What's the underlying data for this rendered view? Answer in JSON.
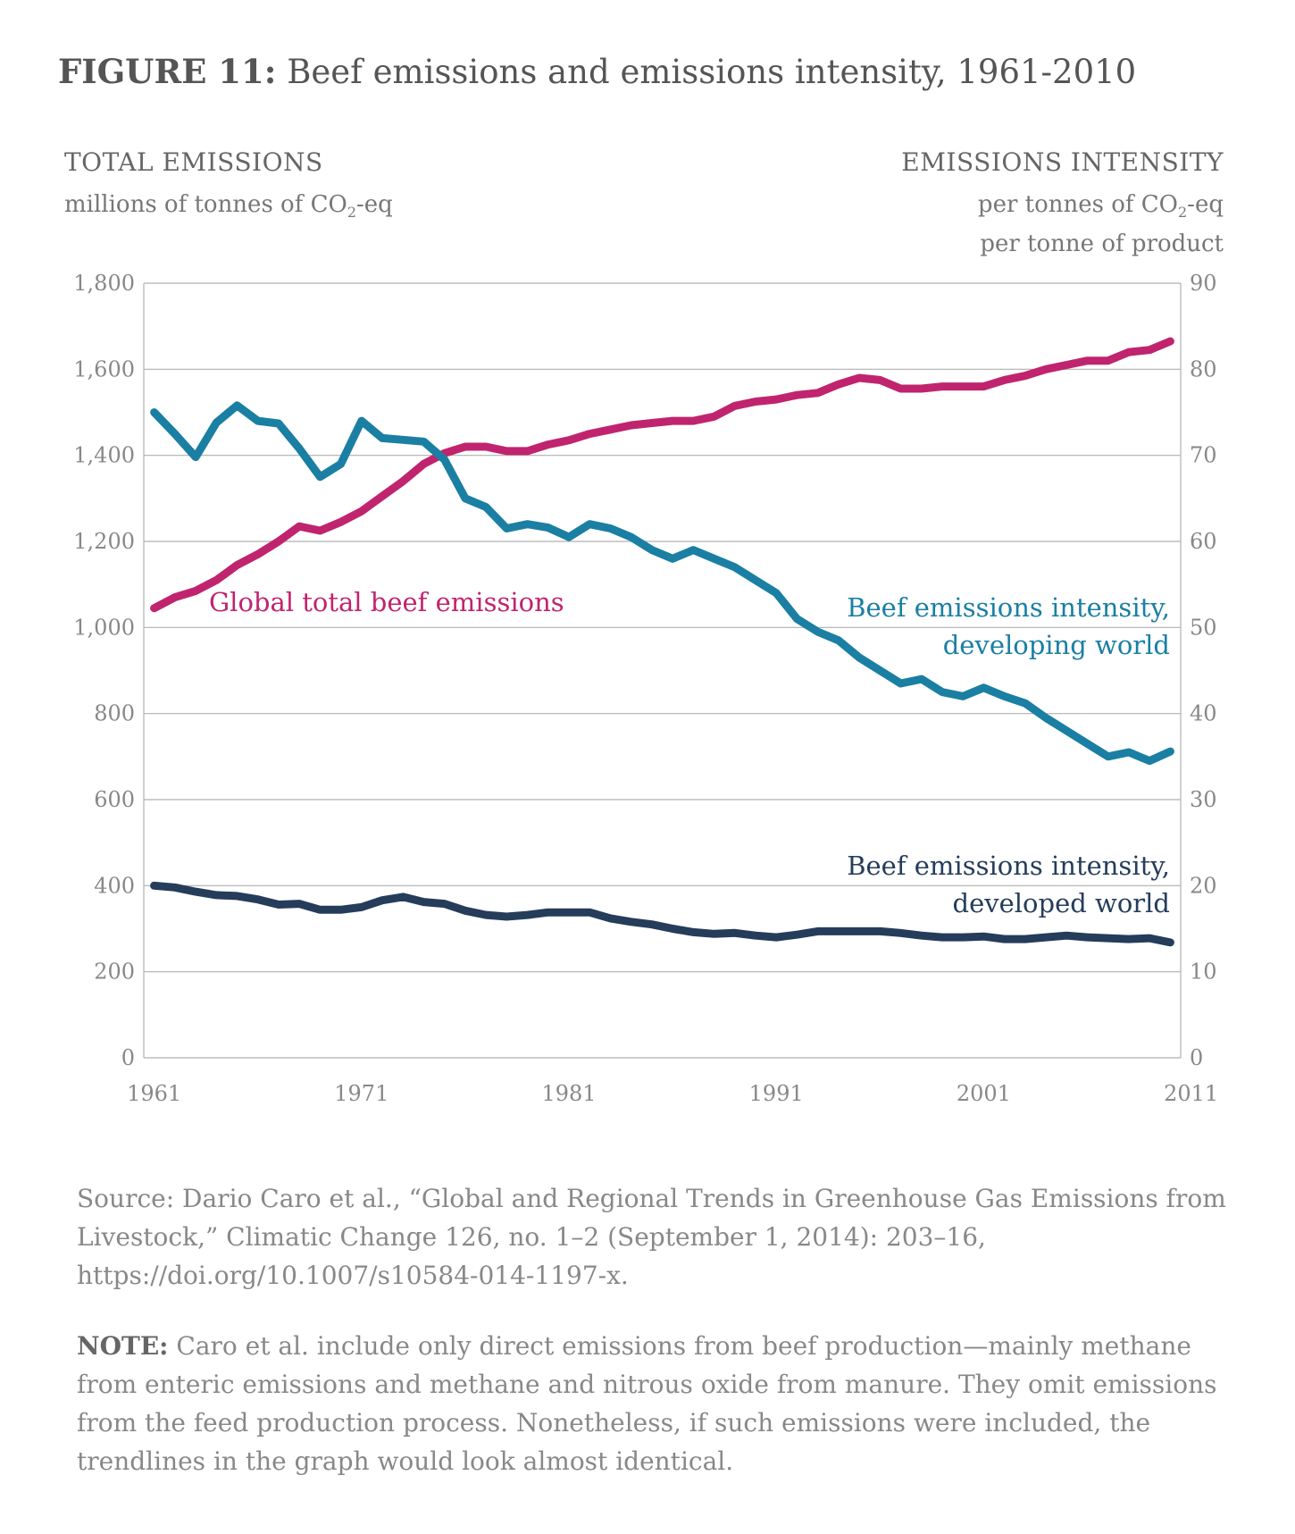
{
  "title": {
    "figure": "FIGURE 11:",
    "text": "Beef emissions and emissions intensity, 1961-2010"
  },
  "left_axis": {
    "heading": "TOTAL EMISSIONS",
    "unit": "millions of tonnes of CO",
    "sub": "2",
    "unit_end": "-eq"
  },
  "right_axis": {
    "heading": "EMISSIONS INTENSITY",
    "unit_line1": "per tonnes of CO",
    "sub": "2",
    "unit_line1_end": "-eq",
    "unit_line2": "per tonne of product"
  },
  "colors": {
    "global": "#c0246e",
    "developing": "#1a7fa3",
    "developed": "#253d5b",
    "grid": "#b0b0b0"
  },
  "chart_data": {
    "type": "line",
    "x_ticks": [
      "1961",
      "1971",
      "1981",
      "1991",
      "2001",
      "2011"
    ],
    "left_ticks": [
      "0",
      "200",
      "400",
      "600",
      "800",
      "1,000",
      "1,200",
      "1,400",
      "1,600",
      "1,800"
    ],
    "right_ticks": [
      "0",
      "10",
      "20",
      "30",
      "40",
      "50",
      "60",
      "70",
      "80",
      "90"
    ],
    "xlim": [
      1960.5,
      2010.5
    ],
    "ylim_left": [
      0,
      1800
    ],
    "ylim_right": [
      0,
      90
    ],
    "x": [
      1961,
      1962,
      1963,
      1964,
      1965,
      1966,
      1967,
      1968,
      1969,
      1970,
      1971,
      1972,
      1973,
      1974,
      1975,
      1976,
      1977,
      1978,
      1979,
      1980,
      1981,
      1982,
      1983,
      1984,
      1985,
      1986,
      1987,
      1988,
      1989,
      1990,
      1991,
      1992,
      1993,
      1994,
      1995,
      1996,
      1997,
      1998,
      1999,
      2000,
      2001,
      2002,
      2003,
      2004,
      2005,
      2006,
      2007,
      2008,
      2009,
      2010
    ],
    "series": [
      {
        "name": "Global total beef emissions",
        "axis": "left",
        "color_key": "global",
        "label_lines": [
          "Global total beef emissions"
        ],
        "values": [
          1045,
          1070,
          1085,
          1110,
          1145,
          1170,
          1200,
          1235,
          1225,
          1245,
          1270,
          1305,
          1340,
          1380,
          1405,
          1420,
          1420,
          1410,
          1410,
          1425,
          1435,
          1450,
          1460,
          1470,
          1475,
          1480,
          1480,
          1490,
          1515,
          1525,
          1530,
          1540,
          1545,
          1565,
          1580,
          1575,
          1555,
          1555,
          1560,
          1560,
          1560,
          1575,
          1585,
          1600,
          1610,
          1620,
          1620,
          1640,
          1645,
          1665
        ]
      },
      {
        "name": "Beef emissions intensity, developing world",
        "axis": "right",
        "color_key": "developing",
        "label_lines": [
          "Beef emissions intensity,",
          "developing world"
        ],
        "values": [
          75,
          72.5,
          69.8,
          73.8,
          75.8,
          74,
          73.7,
          70.8,
          67.5,
          69,
          74,
          72,
          71.8,
          71.6,
          69.5,
          65,
          64,
          61.5,
          62,
          61.6,
          60.5,
          62,
          61.5,
          60.5,
          59,
          58,
          59,
          58,
          57,
          55.5,
          54,
          51,
          49.5,
          48.5,
          46.5,
          45,
          43.5,
          44,
          42.5,
          42,
          43,
          42,
          41.2,
          39.5,
          38,
          36.5,
          35,
          35.5,
          34.5,
          35.6
        ]
      },
      {
        "name": "Beef emissions intensity, developed world",
        "axis": "right",
        "color_key": "developed",
        "label_lines": [
          "Beef emissions intensity,",
          "developed world"
        ],
        "values": [
          20,
          19.8,
          19.3,
          18.9,
          18.8,
          18.4,
          17.8,
          17.9,
          17.2,
          17.2,
          17.5,
          18.3,
          18.7,
          18.1,
          17.9,
          17.1,
          16.6,
          16.4,
          16.6,
          16.9,
          16.9,
          16.9,
          16.2,
          15.8,
          15.5,
          15,
          14.6,
          14.4,
          14.5,
          14.2,
          14,
          14.3,
          14.7,
          14.7,
          14.7,
          14.7,
          14.5,
          14.2,
          14,
          14,
          14.1,
          13.8,
          13.8,
          14,
          14.2,
          14,
          13.9,
          13.8,
          13.9,
          13.4
        ]
      }
    ]
  },
  "source": "Source: Dario Caro et al., “Global and Regional Trends in Greenhouse Gas Emissions from Livestock,” Climatic Change 126, no. 1–2 (September 1, 2014): 203–16, https://doi.org/10.1007/s10584-014-1197-x.",
  "note": {
    "label": "NOTE:",
    "text": " Caro et al. include only direct emissions from beef production—mainly methane from enteric emissions and methane and nitrous oxide from manure. They omit emissions from the feed production process.  Nonetheless, if such emissions were included, the trendlines in the graph would look almost identical."
  }
}
